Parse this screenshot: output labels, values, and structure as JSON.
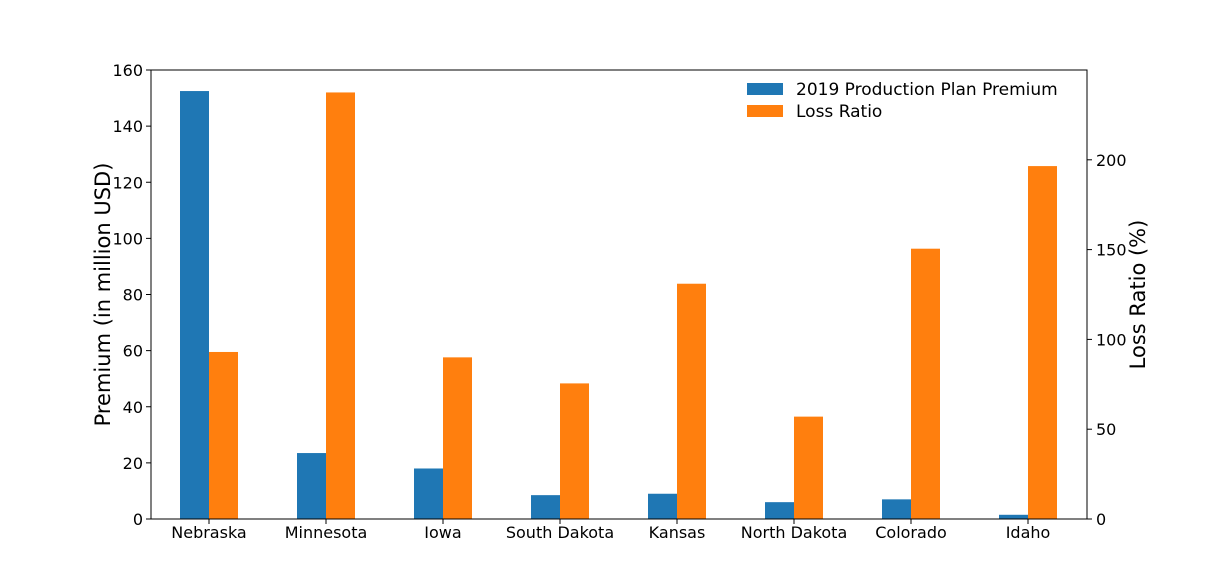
{
  "chart_data": {
    "type": "bar",
    "categories": [
      "Nebraska",
      "Minnesota",
      "Iowa",
      "South Dakota",
      "Kansas",
      "North Dakota",
      "Colorado",
      "Idaho"
    ],
    "series": [
      {
        "name": "2019 Production Plan Premium",
        "axis": "left",
        "color": "#1f77b4",
        "values": [
          152.5,
          23.5,
          18,
          8.5,
          9,
          6,
          7,
          1.5
        ]
      },
      {
        "name": "Loss Ratio",
        "axis": "right",
        "color": "#ff7f0e",
        "values": [
          93,
          237.5,
          90,
          75.5,
          131,
          57,
          150.5,
          196.5
        ]
      }
    ],
    "ylabel": "Premium (in million USD)",
    "y2label": "Loss Ratio (%)",
    "ylim": [
      0,
      160
    ],
    "y2lim": [
      0,
      250
    ],
    "yticks": [
      "0",
      "20",
      "40",
      "60",
      "80",
      "100",
      "120",
      "140",
      "160"
    ],
    "y2ticks": [
      "0",
      "50",
      "100",
      "150",
      "200"
    ],
    "legend_position": "top-right",
    "grid": false
  }
}
